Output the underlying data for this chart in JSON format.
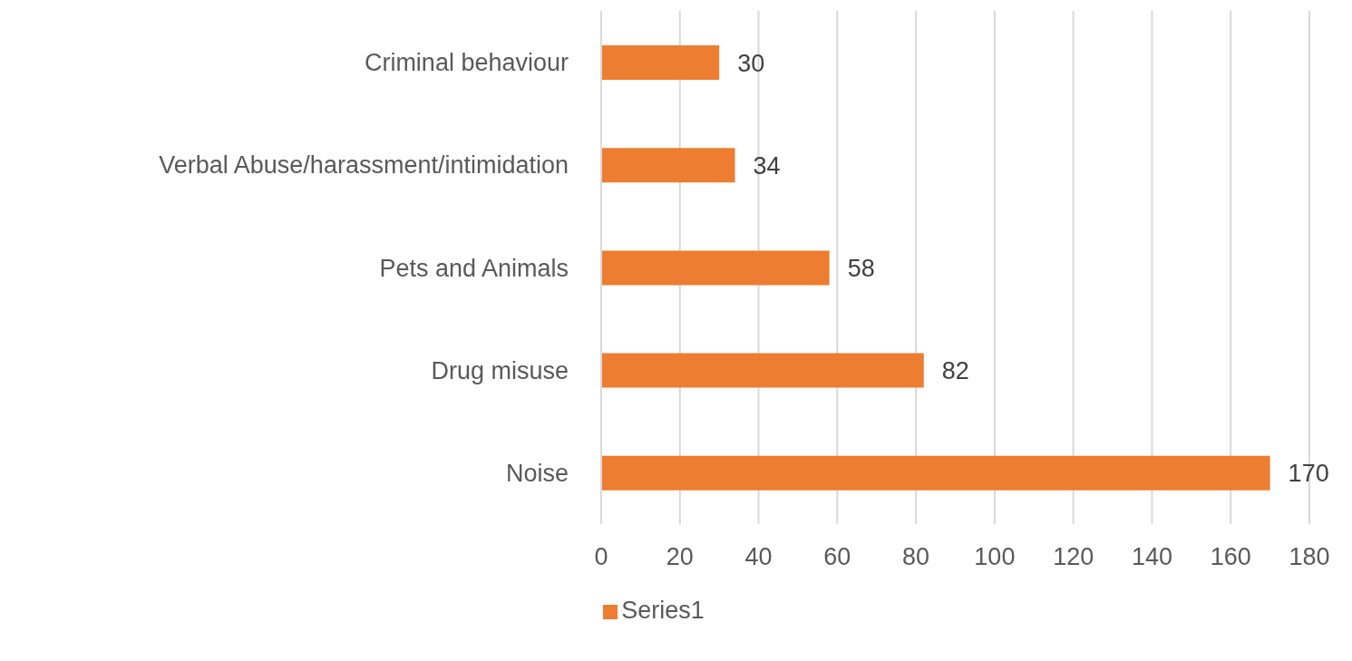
{
  "chart_data": {
    "type": "bar",
    "orientation": "horizontal",
    "categories": [
      "Criminal behaviour",
      "Verbal Abuse/harassment/intimidation",
      "Pets and Animals",
      "Drug misuse",
      "Noise"
    ],
    "series": [
      {
        "name": "Series1",
        "color": "#ed7d31",
        "values": [
          30,
          34,
          58,
          82,
          170
        ]
      }
    ],
    "xlim": [
      0,
      180
    ],
    "xticks": [
      0,
      20,
      40,
      60,
      80,
      100,
      120,
      140,
      160,
      180
    ],
    "grid": "x",
    "legend": "bottom",
    "data_labels": true
  }
}
